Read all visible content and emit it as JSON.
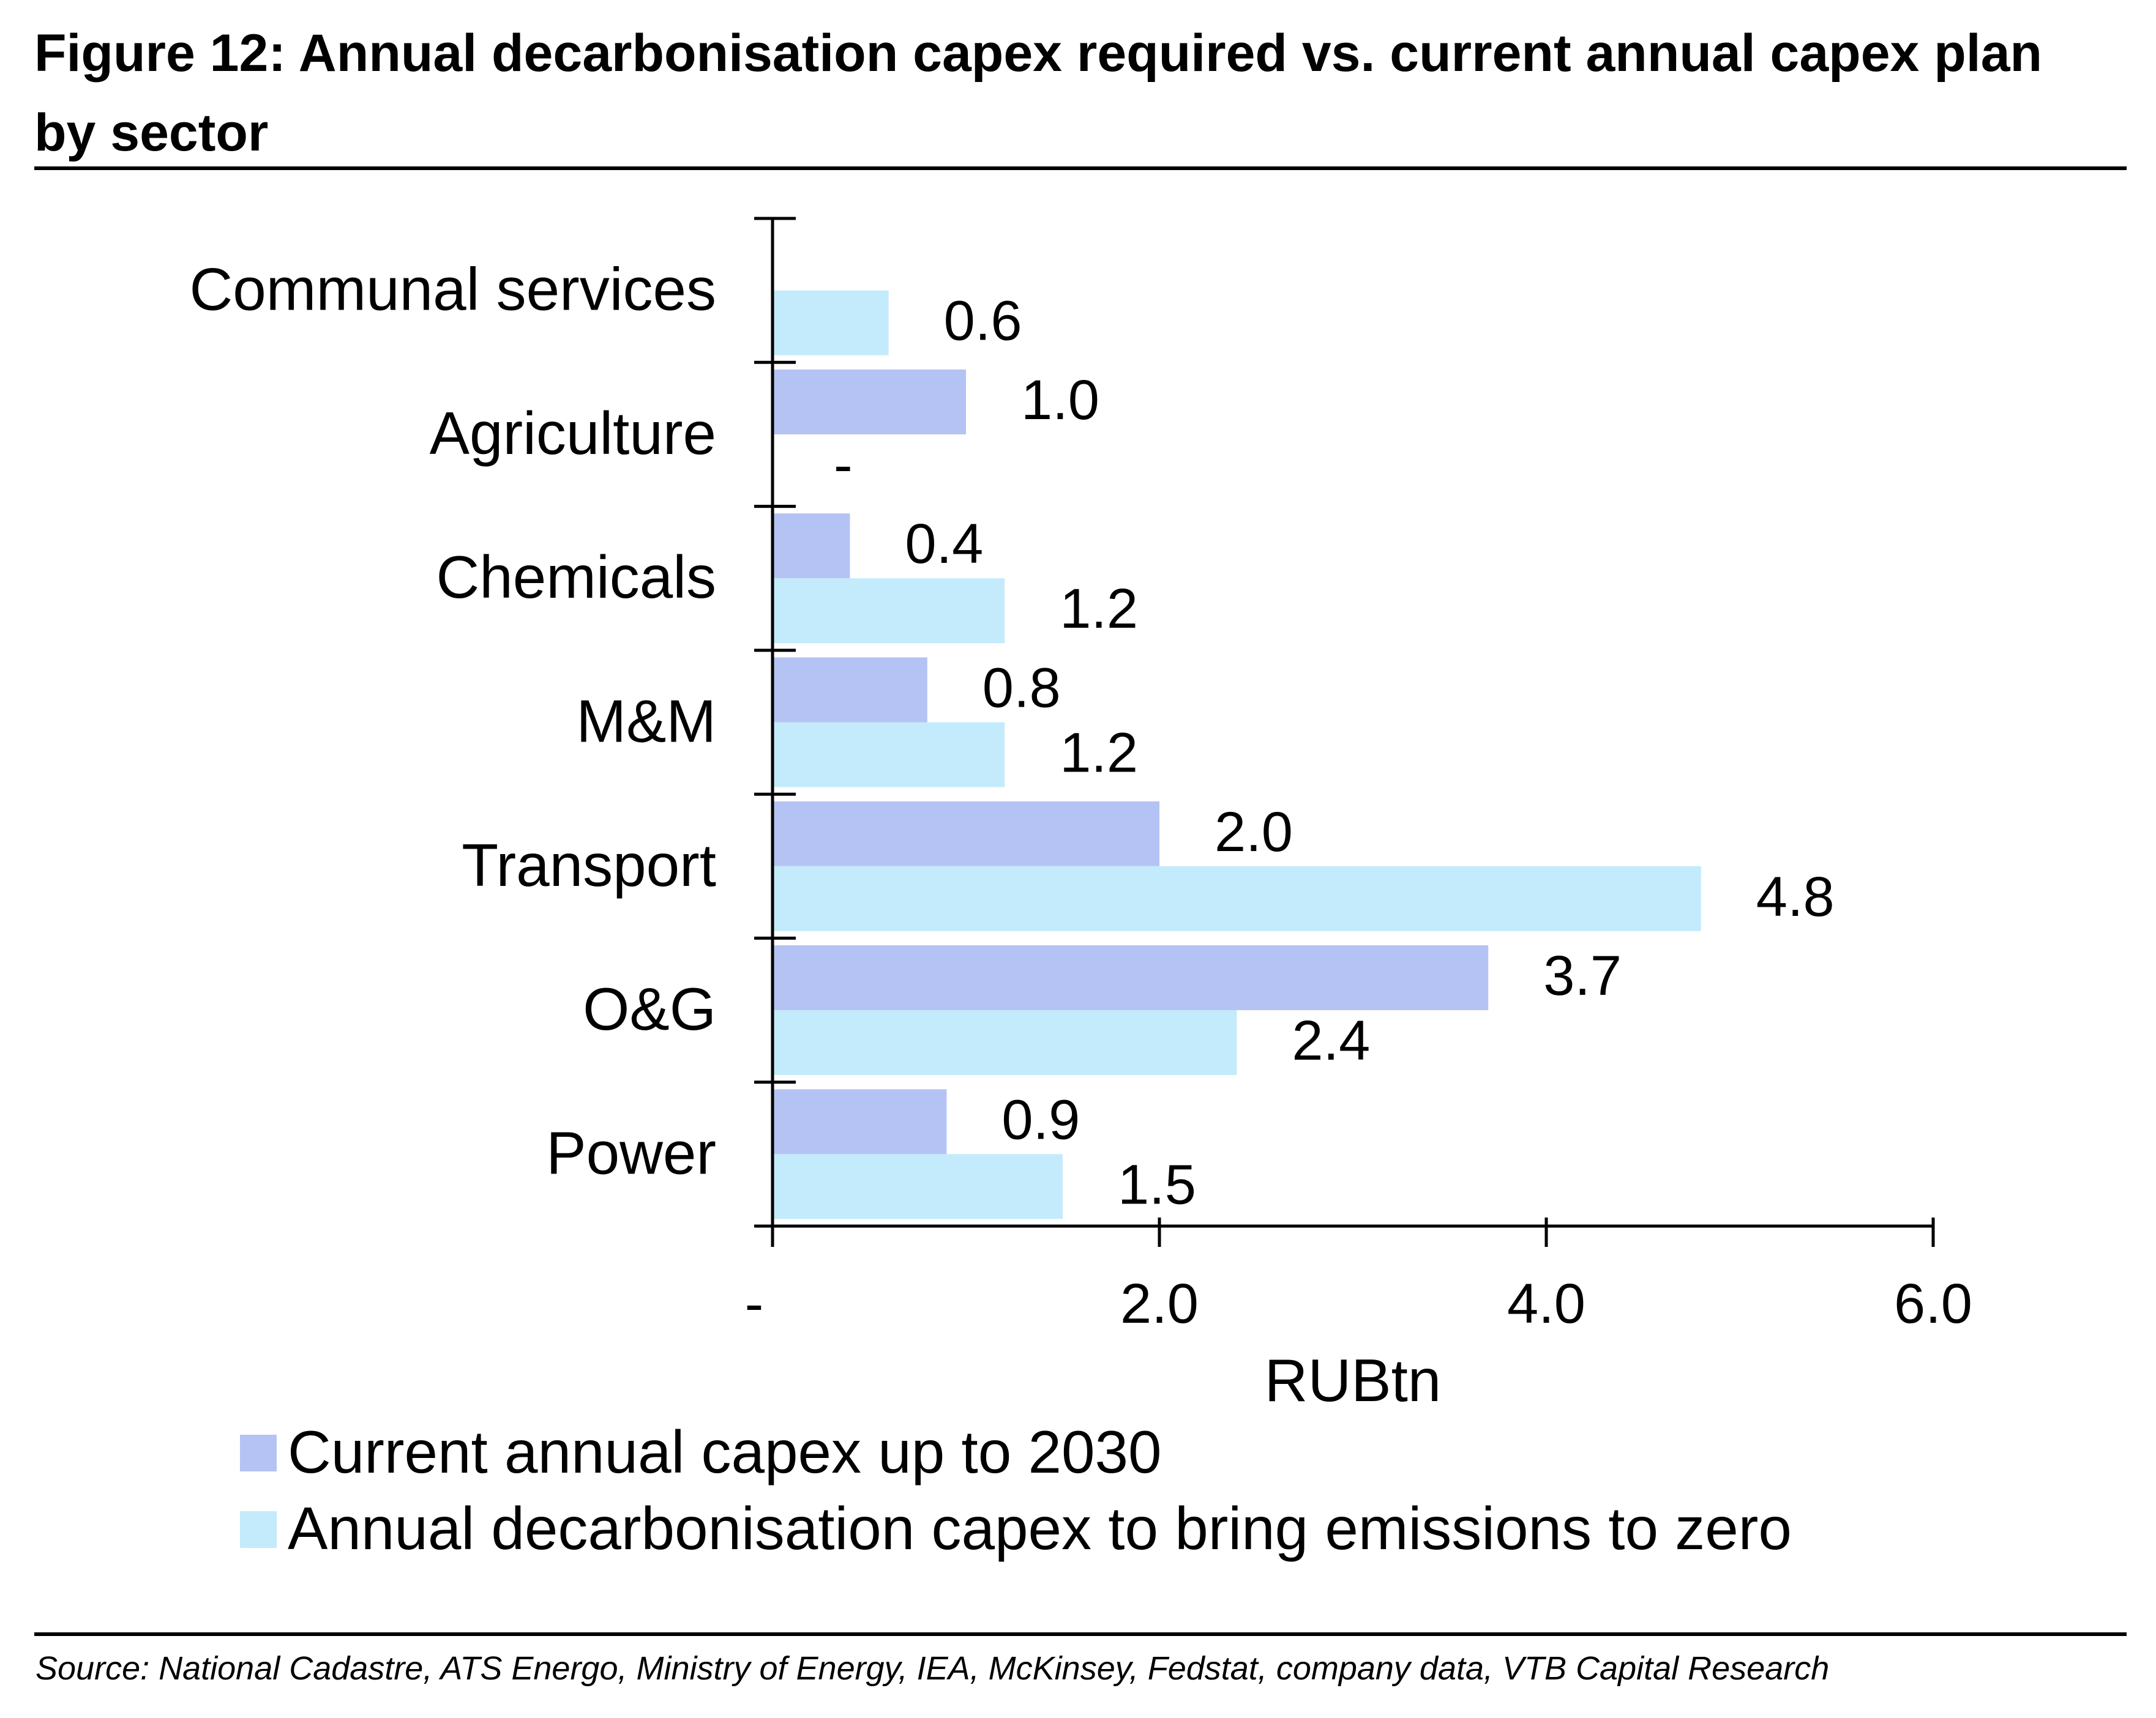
{
  "title": "Figure 12: Annual decarbonisation capex required vs. current annual capex plan by sector",
  "source": "Source: National Cadastre, ATS Energo, Ministry of Energy, IEA, McKinsey, Fedstat, company data, VTB Capital Research",
  "chart_data": {
    "type": "bar",
    "orientation": "horizontal",
    "categories": [
      "Communal services",
      "Agriculture",
      "Chemicals",
      "M&M",
      "Transport",
      "O&G",
      "Power"
    ],
    "series": [
      {
        "name": "Current annual capex up to 2030",
        "color": "#b4c3f4",
        "values": [
          null,
          1.0,
          0.4,
          0.8,
          2.0,
          3.7,
          0.9
        ],
        "labels": [
          "",
          "1.0",
          "0.4",
          "0.8",
          "2.0",
          "3.7",
          "0.9"
        ]
      },
      {
        "name": "Annual decarbonisation capex to bring emissions to zero",
        "color": "#c3ebfb",
        "values": [
          0.6,
          0,
          1.2,
          1.2,
          4.8,
          2.4,
          1.5
        ],
        "labels": [
          "0.6",
          "-",
          "1.2",
          "1.2",
          "4.8",
          "2.4",
          "1.5"
        ]
      }
    ],
    "xlabel": "RUBtn",
    "xlim": [
      0,
      6
    ],
    "xticks": [
      0,
      2,
      4,
      6
    ],
    "xtick_labels": [
      "-",
      "2.0",
      "4.0",
      "6.0"
    ],
    "grid": false,
    "legend_position": "bottom-left"
  }
}
